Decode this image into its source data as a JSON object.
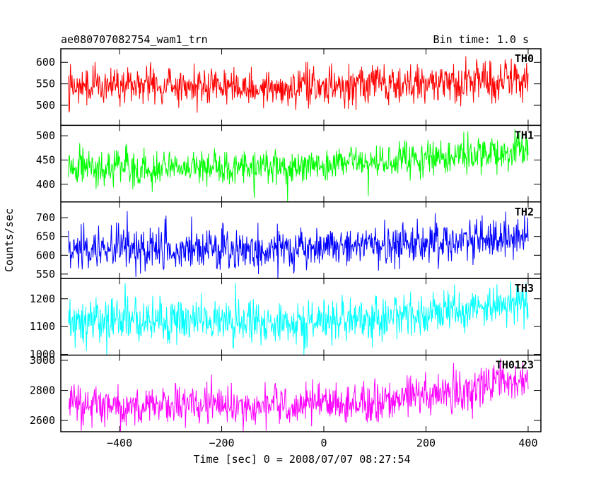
{
  "chart_data": {
    "type": "line",
    "title": "ae080707082754_wam1_trn",
    "subtitle": "Bin time: 1.0 s",
    "xlabel": "Time [sec] 0 = 2008/07/07 08:27:54",
    "ylabel": "Counts/sec",
    "xlim": [
      -515,
      425
    ],
    "x_ticks": [
      -400,
      -200,
      0,
      200,
      400
    ],
    "x_start": -500,
    "x_end": 400,
    "bin_time": 1.0,
    "grid": false,
    "series": [
      {
        "name": "TH0",
        "color": "#ff0000",
        "ylim": [
          455,
          630
        ],
        "y_ticks": [
          500,
          550,
          600
        ],
        "trend": [
          [
            -500,
            545
          ],
          [
            -300,
            545
          ],
          [
            -100,
            540
          ],
          [
            100,
            548
          ],
          [
            300,
            555
          ],
          [
            400,
            565
          ]
        ],
        "noise": 22
      },
      {
        "name": "TH1",
        "color": "#00ff00",
        "ylim": [
          365,
          520
        ],
        "y_ticks": [
          400,
          450,
          500
        ],
        "trend": [
          [
            -500,
            435
          ],
          [
            -300,
            435
          ],
          [
            -100,
            435
          ],
          [
            100,
            445
          ],
          [
            300,
            460
          ],
          [
            400,
            470
          ]
        ],
        "noise": 18
      },
      {
        "name": "TH2",
        "color": "#0000ff",
        "ylim": [
          540,
          740
        ],
        "y_ticks": [
          550,
          600,
          650,
          700
        ],
        "trend": [
          [
            -500,
            620
          ],
          [
            -300,
            615
          ],
          [
            -100,
            615
          ],
          [
            100,
            625
          ],
          [
            300,
            640
          ],
          [
            400,
            655
          ]
        ],
        "noise": 28
      },
      {
        "name": "TH3",
        "color": "#00ffff",
        "ylim": [
          1000,
          1270
        ],
        "y_ticks": [
          1000,
          1100,
          1200
        ],
        "trend": [
          [
            -500,
            1115
          ],
          [
            -300,
            1115
          ],
          [
            -100,
            1110
          ],
          [
            100,
            1125
          ],
          [
            300,
            1165
          ],
          [
            400,
            1185
          ]
        ],
        "noise": 40
      },
      {
        "name": "TH0123",
        "color": "#ff00ff",
        "ylim": [
          2530,
          3030
        ],
        "y_ticks": [
          2600,
          2800,
          3000
        ],
        "trend": [
          [
            -500,
            2700
          ],
          [
            -300,
            2705
          ],
          [
            -100,
            2700
          ],
          [
            100,
            2725
          ],
          [
            300,
            2820
          ],
          [
            400,
            2880
          ]
        ],
        "noise": 65
      }
    ]
  }
}
